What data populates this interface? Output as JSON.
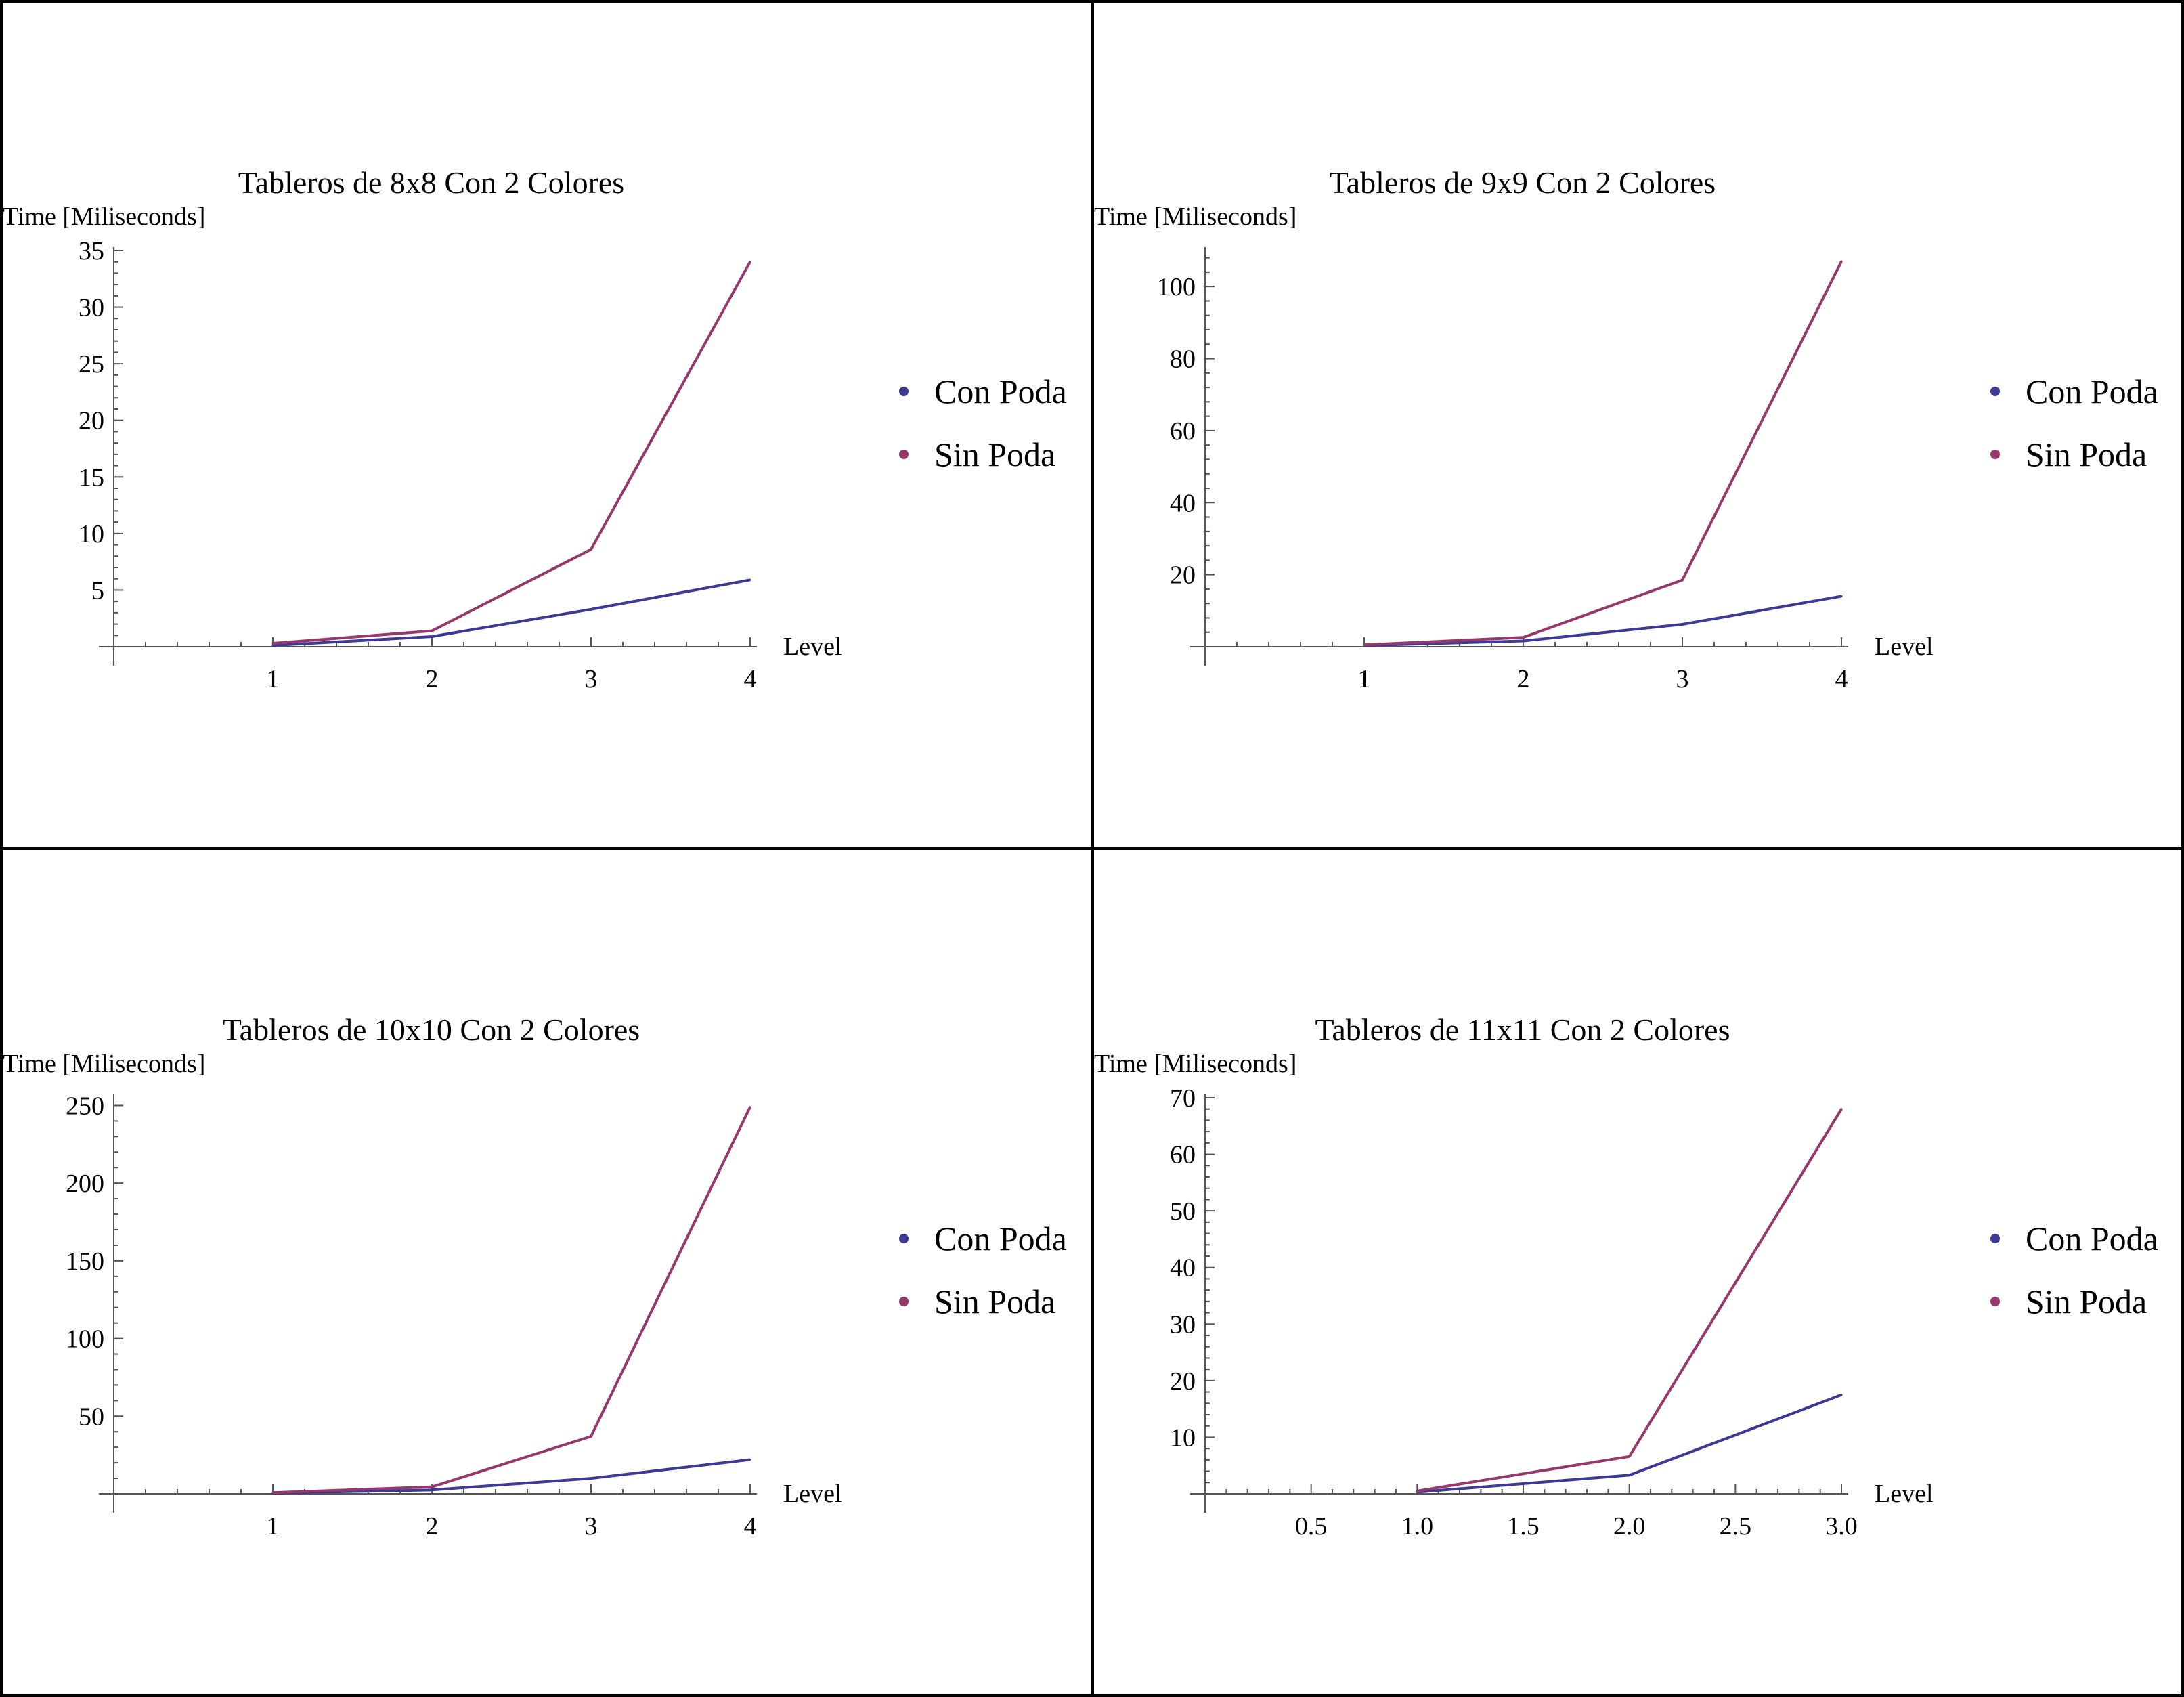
{
  "colors": {
    "con_poda": "#3d3a96",
    "sin_poda": "#97386d",
    "border": "#000000"
  },
  "chart_data": [
    {
      "type": "line",
      "title": "Tableros de 8x8 Con 2 Colores",
      "ylabel": "Time [Miliseconds]",
      "xlabel": "Level",
      "xlim": [
        0,
        4
      ],
      "ylim": [
        0,
        35
      ],
      "xticks": [
        1,
        2,
        3,
        4
      ],
      "xtick_labels": [
        "1",
        "2",
        "3",
        "4"
      ],
      "yticks": [
        5,
        10,
        15,
        20,
        25,
        30,
        35
      ],
      "ytick_labels": [
        "5",
        "10",
        "15",
        "20",
        "25",
        "30",
        "35"
      ],
      "legend_position": "right",
      "series": [
        {
          "name": "Con Poda",
          "color": "#3d3a96",
          "x": [
            1,
            2,
            3,
            4
          ],
          "y": [
            0.1,
            0.9,
            3.3,
            5.9
          ]
        },
        {
          "name": "Sin Poda",
          "color": "#97386d",
          "x": [
            1,
            2,
            3,
            4
          ],
          "y": [
            0.3,
            1.4,
            8.6,
            34.0
          ]
        }
      ]
    },
    {
      "type": "line",
      "title": "Tableros de 9x9 Con 2 Colores",
      "ylabel": "Time [Miliseconds]",
      "xlabel": "Level",
      "xlim": [
        0,
        4
      ],
      "ylim": [
        0,
        110
      ],
      "xticks": [
        1,
        2,
        3,
        4
      ],
      "xtick_labels": [
        "1",
        "2",
        "3",
        "4"
      ],
      "yticks": [
        20,
        40,
        60,
        80,
        100
      ],
      "ytick_labels": [
        "20",
        "40",
        "60",
        "80",
        "100"
      ],
      "legend_position": "right",
      "series": [
        {
          "name": "Con Poda",
          "color": "#3d3a96",
          "x": [
            1,
            2,
            3,
            4
          ],
          "y": [
            0.3,
            1.6,
            6.2,
            14.0
          ]
        },
        {
          "name": "Sin Poda",
          "color": "#97386d",
          "x": [
            1,
            2,
            3,
            4
          ],
          "y": [
            0.5,
            2.6,
            18.5,
            107.0
          ]
        }
      ]
    },
    {
      "type": "line",
      "title": "Tableros de 10x10 Con 2 Colores",
      "ylabel": "Time [Miliseconds]",
      "xlabel": "Level",
      "xlim": [
        0,
        4
      ],
      "ylim": [
        0,
        255
      ],
      "xticks": [
        1,
        2,
        3,
        4
      ],
      "xtick_labels": [
        "1",
        "2",
        "3",
        "4"
      ],
      "yticks": [
        50,
        100,
        150,
        200,
        250
      ],
      "ytick_labels": [
        "50",
        "100",
        "150",
        "200",
        "250"
      ],
      "legend_position": "right",
      "series": [
        {
          "name": "Con Poda",
          "color": "#3d3a96",
          "x": [
            1,
            2,
            3,
            4
          ],
          "y": [
            0.5,
            2.5,
            10.0,
            22.0
          ]
        },
        {
          "name": "Sin Poda",
          "color": "#97386d",
          "x": [
            1,
            2,
            3,
            4
          ],
          "y": [
            0.8,
            4.5,
            37.0,
            249.0
          ]
        }
      ]
    },
    {
      "type": "line",
      "title": "Tableros de 11x11 Con 2 Colores",
      "ylabel": "Time [Miliseconds]",
      "xlabel": "Level",
      "xlim": [
        0,
        3
      ],
      "ylim": [
        0,
        70
      ],
      "xticks": [
        0.5,
        1.0,
        1.5,
        2.0,
        2.5,
        3.0
      ],
      "xtick_labels": [
        "0.5",
        "1.0",
        "1.5",
        "2.0",
        "2.5",
        "3.0"
      ],
      "yticks": [
        10,
        20,
        30,
        40,
        50,
        60,
        70
      ],
      "ytick_labels": [
        "10",
        "20",
        "30",
        "40",
        "50",
        "60",
        "70"
      ],
      "legend_position": "right",
      "series": [
        {
          "name": "Con Poda",
          "color": "#3d3a96",
          "x": [
            1,
            2,
            3
          ],
          "y": [
            0.3,
            3.3,
            17.5
          ]
        },
        {
          "name": "Sin Poda",
          "color": "#97386d",
          "x": [
            1,
            2,
            3
          ],
          "y": [
            0.5,
            6.6,
            68.0
          ]
        }
      ]
    }
  ]
}
